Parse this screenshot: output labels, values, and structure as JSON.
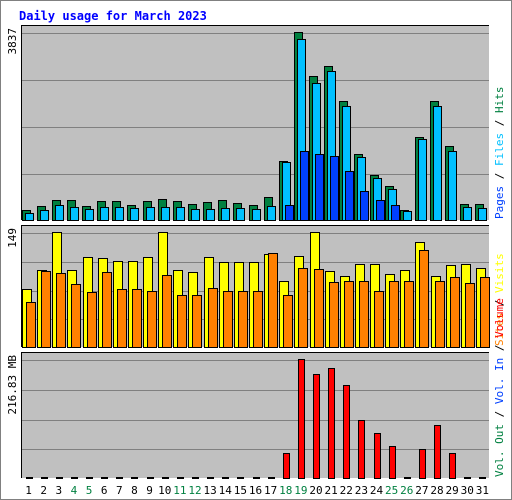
{
  "chart_data": {
    "type": "bar",
    "title": "Daily usage for March 2023",
    "days": [
      "1",
      "2",
      "3",
      "4",
      "5",
      "6",
      "7",
      "8",
      "9",
      "10",
      "11",
      "12",
      "13",
      "14",
      "15",
      "16",
      "17",
      "18",
      "19",
      "20",
      "21",
      "22",
      "23",
      "24",
      "25",
      "26",
      "27",
      "28",
      "29",
      "30",
      "31"
    ],
    "weekend_days": [
      "4",
      "5",
      "11",
      "12",
      "18",
      "19",
      "25",
      "26"
    ],
    "colors": {
      "hits": "#008040",
      "files": "#00c0ff",
      "pages": "#0040ff",
      "visits": "#ffff00",
      "sites": "#ff8000",
      "volume": "#ff0000",
      "vol_in": "#0040ff",
      "vol_out": "#008040",
      "weekday_label": "#000000",
      "weekend_label": "#008040",
      "title": "#0000ff",
      "panel_bg": "#c0c0c0"
    },
    "panels": [
      {
        "name": "hits-files-pages",
        "axis_label": "3837",
        "ymax": 3837,
        "series": [
          {
            "key": "hits",
            "name": "Hits",
            "values": [
              200,
              280,
              400,
              400,
              280,
              380,
              380,
              310,
              390,
              420,
              380,
              320,
              360,
              400,
              350,
              310,
              460,
              1200,
              3837,
              2940,
              3150,
              2420,
              1340,
              920,
              690,
              210,
              1700,
              2420,
              1520,
              320,
              320
            ]
          },
          {
            "key": "files",
            "name": "Files",
            "values": [
              150,
              200,
              300,
              260,
              220,
              260,
              270,
              240,
              260,
              260,
              260,
              230,
              230,
              240,
              240,
              220,
              290,
              1180,
              3700,
              2800,
              3050,
              2320,
              1280,
              850,
              640,
              180,
              1650,
              2330,
              1400,
              270,
              240
            ]
          },
          {
            "key": "pages",
            "name": "Pages",
            "values": [
              0,
              0,
              0,
              0,
              0,
              0,
              0,
              0,
              0,
              0,
              0,
              0,
              0,
              0,
              0,
              0,
              0,
              300,
              1400,
              1350,
              1300,
              1000,
              600,
              400,
              300,
              0,
              0,
              0,
              0,
              0,
              0
            ]
          }
        ],
        "legend": [
          "Hits",
          "Files",
          "Pages"
        ]
      },
      {
        "name": "visits-sites",
        "axis_label": "149",
        "ymax": 149,
        "series": [
          {
            "key": "visits",
            "name": "Visits",
            "values": [
              75,
              100,
              149,
              100,
              117,
              115,
              112,
              112,
              117,
              149,
              100,
              97,
              117,
              110,
              110,
              110,
              120,
              85,
              118,
              149,
              98,
              92,
              107,
              108,
              94,
              100,
              136,
              92,
              106,
              108,
              102
            ]
          },
          {
            "key": "sites",
            "name": "Sites",
            "values": [
              58,
              98,
              96,
              81,
              71,
              97,
              75,
              75,
              73,
              93,
              68,
              67,
              77,
              72,
              73,
              73,
              122,
              68,
              102,
              101,
              84,
              86,
              86,
              72,
              85,
              85,
              126,
              85,
              91,
              83,
              91
            ]
          }
        ],
        "legend": [
          "Visits",
          "Sites"
        ]
      },
      {
        "name": "volume",
        "axis_label": "216.83 MB",
        "ymax": 216.83,
        "series": [
          {
            "key": "volume",
            "name": "Volume",
            "values": [
              1,
              1,
              1,
              1,
              1,
              1,
              1,
              1,
              1,
              1,
              1,
              1,
              1,
              1,
              1,
              1,
              1,
              45,
              216.83,
              190,
              200,
              170,
              106,
              82,
              58,
              2,
              52,
              96,
              46,
              1,
              1
            ]
          }
        ],
        "legend": [
          "Volume",
          "Vol. In",
          "Vol. Out"
        ]
      }
    ]
  }
}
